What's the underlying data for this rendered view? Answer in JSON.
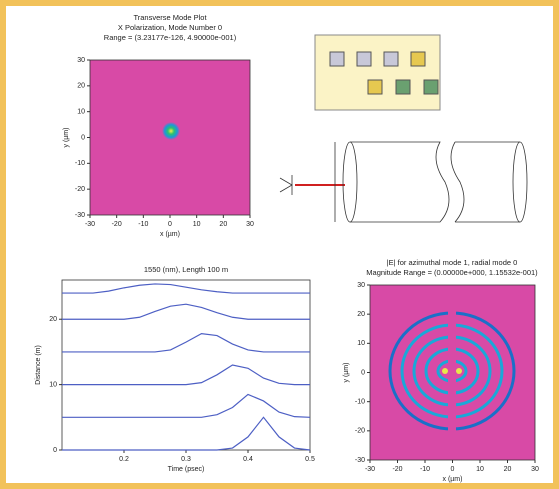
{
  "chart_data": [
    {
      "type": "heatmap",
      "title": "Transverse Mode Plot",
      "subtitle": "X Polarization, Mode Number 0",
      "annotation": "Range = (3.23177e-126, 4.90000e-001)",
      "xlabel": "x (µm)",
      "ylabel": "y (µm)",
      "xlim": [
        -30,
        30
      ],
      "ylim": [
        -30,
        30
      ],
      "xticks": [
        -30,
        -20,
        -10,
        0,
        10,
        20,
        30
      ],
      "yticks": [
        -30,
        -20,
        -10,
        0,
        10,
        20,
        30
      ]
    },
    {
      "type": "line",
      "title": "1550 (nm), Length 100 m",
      "xlabel": "Time (psec)",
      "ylabel": "Distance (m)",
      "x": [
        0.1,
        0.125,
        0.15,
        0.175,
        0.2,
        0.225,
        0.25,
        0.275,
        0.3,
        0.325,
        0.35,
        0.375,
        0.4,
        0.425,
        0.45,
        0.475,
        0.5
      ],
      "series": [
        {
          "color": "#4d5fc4",
          "values": [
            0,
            0,
            0,
            0,
            0,
            0,
            0,
            0,
            0,
            0,
            0,
            0.3,
            2,
            5,
            2,
            0.3,
            0
          ]
        },
        {
          "color": "#4d5fc4",
          "values": [
            5,
            5,
            5,
            5,
            5,
            5,
            5,
            5,
            5,
            5,
            5.4,
            6.5,
            8.5,
            7.5,
            5.8,
            5.1,
            5
          ]
        },
        {
          "color": "#4d5fc4",
          "values": [
            10,
            10,
            10,
            10,
            10,
            10,
            10,
            10,
            10,
            10.3,
            11.5,
            13,
            12.5,
            11,
            10.2,
            10,
            10
          ]
        },
        {
          "color": "#4d5fc4",
          "values": [
            15,
            15,
            15,
            15,
            15,
            15,
            15,
            15.3,
            16.5,
            17.8,
            17.5,
            16.2,
            15.3,
            15,
            15,
            15,
            15
          ]
        },
        {
          "color": "#4d5fc4",
          "values": [
            20,
            20,
            20,
            20,
            20,
            20.3,
            21.2,
            22,
            22.3,
            21.8,
            21,
            20.3,
            20,
            20,
            20,
            20,
            20
          ]
        },
        {
          "color": "#4d5fc4",
          "values": [
            24,
            24,
            24,
            24.3,
            24.8,
            25.2,
            25.4,
            25.3,
            24.9,
            24.5,
            24.2,
            24,
            24,
            24,
            24,
            24,
            24
          ]
        }
      ],
      "xlim": [
        0.1,
        0.5
      ],
      "ylim": [
        0,
        26
      ],
      "xticks": [
        0.2,
        0.3,
        0.4,
        0.5
      ],
      "yticks": [
        0,
        10,
        20
      ]
    },
    {
      "type": "heatmap",
      "title": "|E| for azimuthal mode 1, radial mode 0",
      "subtitle": "Magnitude Range = (0.00000e+000, 1.15532e-001)",
      "xlabel": "x (µm)",
      "ylabel": "y (µm)",
      "xlim": [
        -30,
        30
      ],
      "ylim": [
        -30,
        30
      ],
      "xticks": [
        -30,
        -20,
        -10,
        0,
        10,
        20,
        30
      ],
      "yticks": [
        -30,
        -20,
        -10,
        0,
        10,
        20,
        30
      ]
    }
  ]
}
